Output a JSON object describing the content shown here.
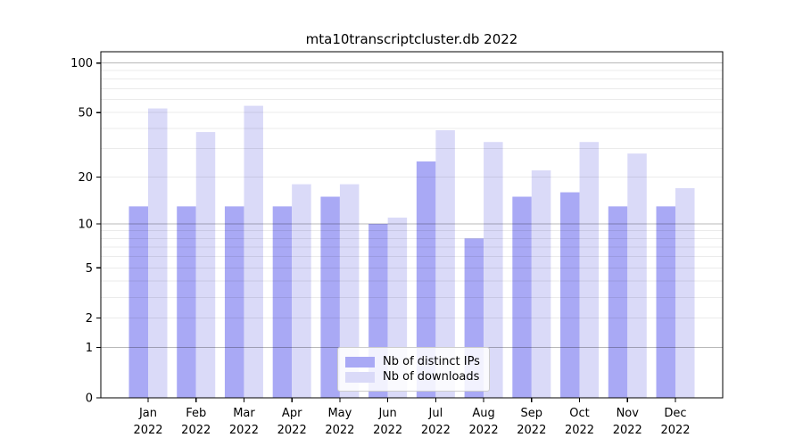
{
  "title": "mta10transcriptcluster.db 2022",
  "legend": {
    "items": [
      {
        "label": "Nb of distinct IPs",
        "color": "#a9a9f5"
      },
      {
        "label": "Nb of downloads",
        "color": "#dadaf8"
      }
    ]
  },
  "chart_data": {
    "type": "bar",
    "title": "mta10transcriptcluster.db 2022",
    "categories": [
      "Jan",
      "Feb",
      "Mar",
      "Apr",
      "May",
      "Jun",
      "Jul",
      "Aug",
      "Sep",
      "Oct",
      "Nov",
      "Dec"
    ],
    "year": "2022",
    "series": [
      {
        "name": "Nb of distinct IPs",
        "color": "#a9a9f5",
        "values": [
          13,
          13,
          13,
          13,
          15,
          10,
          25,
          8,
          15,
          16,
          13,
          13
        ]
      },
      {
        "name": "Nb of downloads",
        "color": "#dadaf8",
        "values": [
          53,
          38,
          55,
          18,
          18,
          11,
          39,
          33,
          22,
          33,
          28,
          17
        ]
      }
    ],
    "y_scale": "log10(1+v)",
    "y_ticks": [
      0,
      1,
      2,
      5,
      10,
      20,
      50,
      100
    ],
    "y_major_gridlines": [
      1,
      10,
      100
    ],
    "y_minor_gridlines": [
      2,
      3,
      4,
      5,
      6,
      7,
      8,
      9,
      20,
      30,
      40,
      50,
      60,
      70,
      80,
      90
    ],
    "ylim": [
      0,
      117
    ],
    "grid": true,
    "grid_above_bars": true,
    "legend_position": "lower center",
    "axis_color": "#000000",
    "text_color": "#000000"
  }
}
